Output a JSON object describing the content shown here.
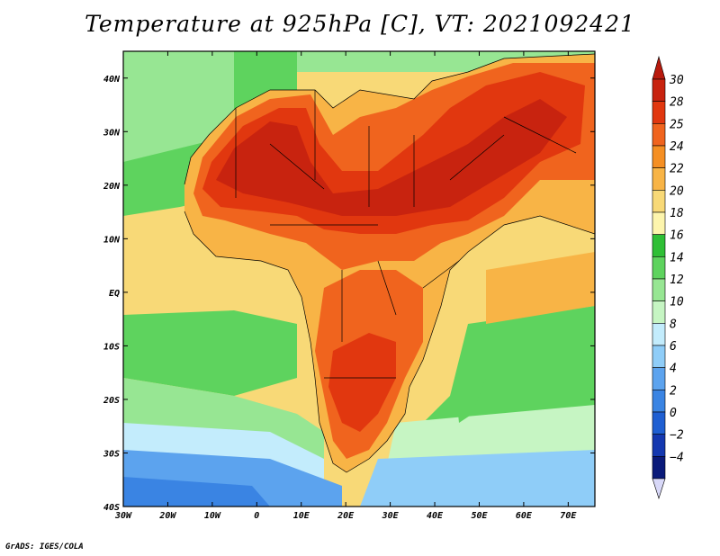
{
  "title": "Temperature at 925hPa [C], VT: 2021092421",
  "footer": "GrADS: IGES/COLA",
  "map": {
    "lon_range": [
      -30,
      76
    ],
    "lat_range": [
      -40,
      45
    ],
    "lon_ticks": [
      {
        "value": -30,
        "label": "30W"
      },
      {
        "value": -20,
        "label": "20W"
      },
      {
        "value": -10,
        "label": "10W"
      },
      {
        "value": 0,
        "label": "0"
      },
      {
        "value": 10,
        "label": "10E"
      },
      {
        "value": 20,
        "label": "20E"
      },
      {
        "value": 30,
        "label": "30E"
      },
      {
        "value": 40,
        "label": "40E"
      },
      {
        "value": 50,
        "label": "50E"
      },
      {
        "value": 60,
        "label": "60E"
      },
      {
        "value": 70,
        "label": "70E"
      }
    ],
    "lat_ticks": [
      {
        "value": 40,
        "label": "40N"
      },
      {
        "value": 30,
        "label": "30N"
      },
      {
        "value": 20,
        "label": "20N"
      },
      {
        "value": 10,
        "label": "10N"
      },
      {
        "value": 0,
        "label": "EQ"
      },
      {
        "value": -10,
        "label": "10S"
      },
      {
        "value": -20,
        "label": "20S"
      },
      {
        "value": -30,
        "label": "30S"
      },
      {
        "value": -40,
        "label": "40S"
      }
    ]
  },
  "colorbar": {
    "levels": [
      {
        "label": "30",
        "color": "#c8230f"
      },
      {
        "label": "28",
        "color": "#e1370f"
      },
      {
        "label": "25",
        "color": "#f0641e"
      },
      {
        "label": "24",
        "color": "#f58f23"
      },
      {
        "label": "22",
        "color": "#f8b446"
      },
      {
        "label": "20",
        "color": "#f8d977"
      },
      {
        "label": "18",
        "color": "#fdf5ad"
      },
      {
        "label": "16",
        "color": "#2fbf36"
      },
      {
        "label": "14",
        "color": "#5ed35e"
      },
      {
        "label": "12",
        "color": "#97e693"
      },
      {
        "label": "10",
        "color": "#c6f5c3"
      },
      {
        "label": "8",
        "color": "#c3ecfc"
      },
      {
        "label": "6",
        "color": "#8fcdf8"
      },
      {
        "label": "4",
        "color": "#5ca3ee"
      },
      {
        "label": "2",
        "color": "#3a84e3"
      },
      {
        "label": "0",
        "color": "#1f5fd2"
      },
      {
        "label": "−2",
        "color": "#1438b0"
      },
      {
        "label": "−4",
        "color": "#0a1a7a"
      }
    ],
    "top_color": "#b81a0d",
    "bottom_color": "#d8d8f8"
  }
}
